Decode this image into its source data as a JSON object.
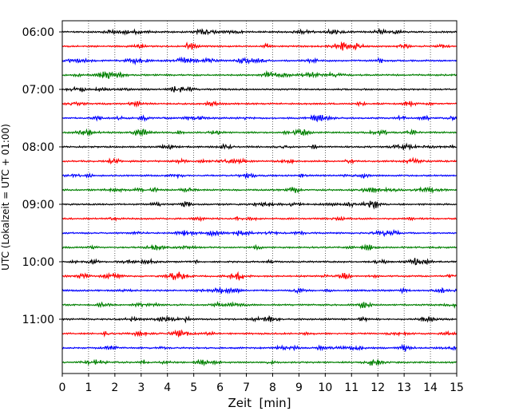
{
  "chart_data": {
    "type": "line",
    "title": "",
    "xlabel": "Zeit  [min]",
    "ylabel": "UTC (Lokalzeit = UTC + 01:00)",
    "xlim": [
      0,
      15
    ],
    "x_ticks": [
      "0",
      "1",
      "2",
      "3",
      "4",
      "5",
      "6",
      "7",
      "8",
      "9",
      "10",
      "11",
      "12",
      "13",
      "14",
      "15"
    ],
    "y_ticks": [
      "06:00",
      "07:00",
      "08:00",
      "09:00",
      "10:00",
      "11:00"
    ],
    "trace_interval_min": 15,
    "trace_count": 24,
    "color_cycle": [
      "#000000",
      "#ff0000",
      "#0000ff",
      "#008000"
    ],
    "grid": "vertical dotted at each minute",
    "legend": "none"
  }
}
